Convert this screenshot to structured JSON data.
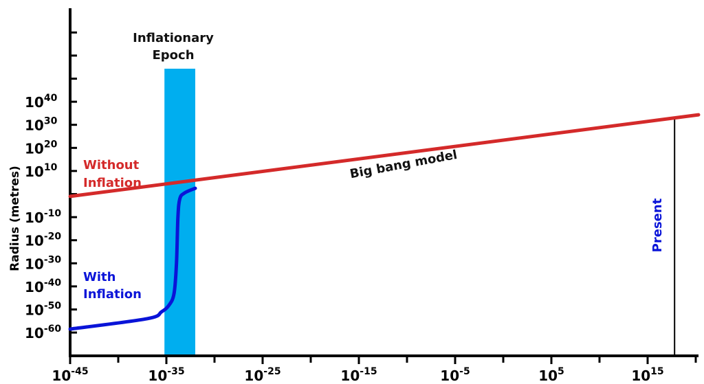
{
  "chart_data": {
    "type": "line",
    "title": "",
    "xlabel": "",
    "ylabel": "Radius (metres)",
    "x_scale": "log",
    "y_scale": "log",
    "x_tick_exponents": [
      -45,
      -35,
      -25,
      -15,
      -5,
      5,
      15
    ],
    "y_tick_exponents": [
      40,
      30,
      20,
      10,
      -10,
      -20,
      -30,
      -40,
      -50,
      -60
    ],
    "tick_base": "10",
    "grid": false,
    "legend": "none",
    "series": [
      {
        "name": "Without Inflation",
        "color": "#d42a2a",
        "x_exponent": [
          -45,
          -32,
          17.8
        ],
        "y_exponent": [
          -1,
          2.5,
          33
        ]
      },
      {
        "name": "With Inflation",
        "color": "#0a14d8",
        "x_exponent": [
          -45,
          -37,
          -35.5,
          -34.7,
          -34.2,
          -33.95,
          -33.8,
          -33.6,
          -33.1,
          -32
        ],
        "y_exponent": [
          -58.5,
          -54,
          -51,
          -48,
          -43,
          -30,
          -10,
          -2,
          0.5,
          2.5
        ]
      }
    ],
    "annotations": {
      "band_label_line1": "Inflationary",
      "band_label_line2": "Epoch",
      "band_color": "#00aeef",
      "band_x_exponent": [
        -35.2,
        -32
      ],
      "without_line1": "Without",
      "without_line2": "Inflation",
      "with_line1": "With",
      "with_line2": "Inflation",
      "big_bang": "Big bang model",
      "present": "Present",
      "present_x_exponent": 17.8,
      "present_color": "#0a14d8"
    }
  }
}
